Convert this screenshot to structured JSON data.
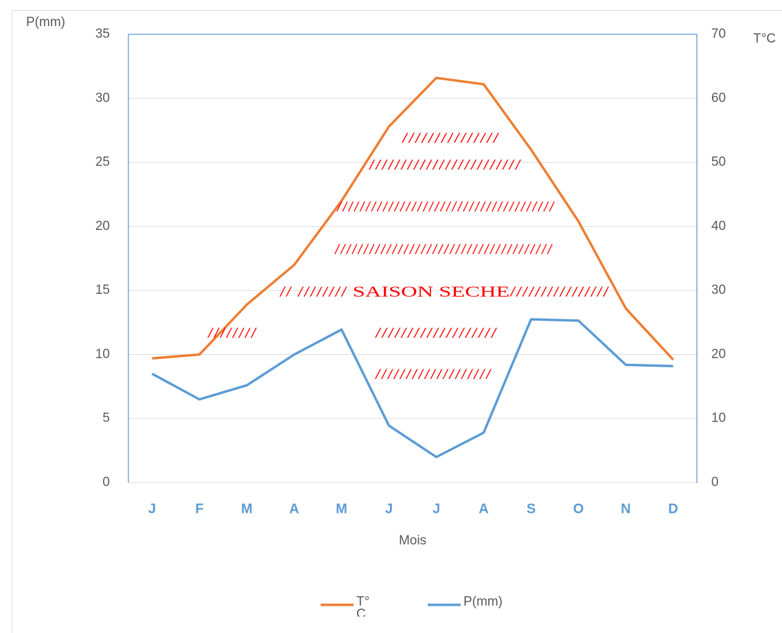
{
  "chart_data": {
    "type": "line",
    "categories": [
      "J",
      "F",
      "M",
      "A",
      "M",
      "J",
      "J",
      "A",
      "S",
      "O",
      "N",
      "D"
    ],
    "x_label": "Mois",
    "y_label": "P(mm)",
    "y2_label": "T°C",
    "ylim": [
      0,
      35
    ],
    "yticks": [
      0,
      5,
      10,
      15,
      20,
      25,
      30,
      35
    ],
    "y2lim": [
      0,
      70
    ],
    "y2ticks": [
      0,
      10,
      20,
      30,
      40,
      50,
      60,
      70
    ],
    "grid": true,
    "legend": "bottom",
    "series": [
      {
        "name": "T°C",
        "color": "#ed7d31",
        "values": [
          9.7,
          10.0,
          13.9,
          17.0,
          22.0,
          27.8,
          31.6,
          31.1,
          26.0,
          20.4,
          13.6,
          9.6
        ]
      },
      {
        "name": "P(mm)",
        "color": "#5b9bd5",
        "axis": "y2",
        "values": [
          17.0,
          13.0,
          15.2,
          20.0,
          23.9,
          8.9,
          4.0,
          7.8,
          25.5,
          25.3,
          18.4,
          18.2
        ]
      }
    ],
    "annotations": [
      "///////////////",
      "////////////////////////",
      "//////////////////////////////////////",
      "//////////////////////////////////////",
      "// //////// SAISON SECHE////////////////",
      "////////",
      "///////////////////",
      "///////////////////"
    ]
  }
}
